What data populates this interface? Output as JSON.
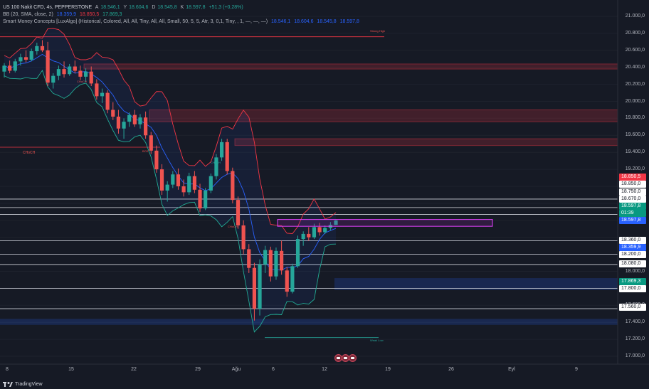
{
  "header": {
    "line1": {
      "symbol": "US 100 Nakit CFD, 4s, PEPPERSTONE",
      "o_label": "A",
      "o_val": "18.546,1",
      "h_label": "Y",
      "h_val": "18.604,6",
      "l_label": "D",
      "l_val": "18.545,8",
      "c_label": "K",
      "c_val": "18.597,8",
      "change": "+51,3 (+0,28%)"
    },
    "line2": {
      "name": "BB (20, SMA, close, 2)",
      "basis": "18.359,9",
      "upper": "18.850,5",
      "lower": "17.869,3"
    },
    "line3": {
      "name": "Smart Money Concepts [LuxAlgo] (Historical, Colored, All, All, Tiny, All, All, Small, 50, 5, 5, Atr, 3, 0,1, Tiny, , 1, —, —, —)",
      "v1": "18.546,1",
      "v2": "18.604,6",
      "v3": "18.545,8",
      "v4": "18.597,8"
    }
  },
  "price_axis": {
    "ticks": [
      "21.000,0",
      "20.800,0",
      "20.600,0",
      "20.400,0",
      "20.200,0",
      "20.000,0",
      "19.800,0",
      "19.600,0",
      "19.400,0",
      "19.200,0",
      "18.000,0",
      "17.600,0",
      "17.400,0",
      "17.200,0",
      "17.000,0"
    ],
    "tags": {
      "bb_upper": "18.850,5",
      "level_18850": "18.850,0",
      "level_18750": "18.750,0",
      "level_18670": "18.670,0",
      "last_price": "18.597,8",
      "countdown": "01:39",
      "last_price_blue": "18.597,8",
      "level_18360": "18.360,0",
      "bb_basis": "18.359,9",
      "level_18200": "18.200,0",
      "level_18080": "18.080,0",
      "bb_lower": "17.869,3",
      "level_17800": "17.800,0",
      "level_17560": "17.560,0"
    }
  },
  "time_axis": [
    "8",
    "15",
    "22",
    "29",
    "Ağu",
    "6",
    "12",
    "19",
    "26",
    "Eyl",
    "9"
  ],
  "smc_labels": {
    "strong_high": "Strong High",
    "weak_low": "Weak Low",
    "choch_big": "CHoCH",
    "choch": "CHoCH",
    "bos": "BOS"
  },
  "branding": "TradingView",
  "colors": {
    "background": "#161a25",
    "up": "#26a69a",
    "down": "#ef5350",
    "bb_upper": "#f23645",
    "bb_basis": "#2962ff",
    "bb_lower": "#22ab94",
    "supply_zone": "#f2364533",
    "demand_zone": "#2962ff33",
    "ob_box": "#9c27b0"
  },
  "chart_data": {
    "type": "candlestick",
    "timeframe": "4h",
    "ylim": [
      17000,
      21100
    ],
    "levels": [
      18850,
      18750,
      18670,
      18360,
      18200,
      18080,
      17800,
      17560
    ],
    "candles": [
      {
        "o": 20350,
        "h": 20450,
        "l": 20280,
        "c": 20420
      },
      {
        "o": 20420,
        "h": 20480,
        "l": 20330,
        "c": 20360
      },
      {
        "o": 20360,
        "h": 20500,
        "l": 20340,
        "c": 20470
      },
      {
        "o": 20470,
        "h": 20560,
        "l": 20420,
        "c": 20520
      },
      {
        "o": 20520,
        "h": 20600,
        "l": 20460,
        "c": 20490
      },
      {
        "o": 20490,
        "h": 20620,
        "l": 20470,
        "c": 20590
      },
      {
        "o": 20590,
        "h": 20690,
        "l": 20550,
        "c": 20650
      },
      {
        "o": 20650,
        "h": 20720,
        "l": 20580,
        "c": 20600
      },
      {
        "o": 20600,
        "h": 20700,
        "l": 20180,
        "c": 20220
      },
      {
        "o": 20220,
        "h": 20330,
        "l": 20150,
        "c": 20300
      },
      {
        "o": 20300,
        "h": 20420,
        "l": 20250,
        "c": 20380
      },
      {
        "o": 20380,
        "h": 20470,
        "l": 20280,
        "c": 20320
      },
      {
        "o": 20320,
        "h": 20440,
        "l": 20300,
        "c": 20410
      },
      {
        "o": 20410,
        "h": 20480,
        "l": 20330,
        "c": 20360
      },
      {
        "o": 20360,
        "h": 20420,
        "l": 20250,
        "c": 20290
      },
      {
        "o": 20290,
        "h": 20390,
        "l": 20230,
        "c": 20350
      },
      {
        "o": 20350,
        "h": 20410,
        "l": 20180,
        "c": 20210
      },
      {
        "o": 20210,
        "h": 20260,
        "l": 20020,
        "c": 20060
      },
      {
        "o": 20060,
        "h": 20150,
        "l": 19980,
        "c": 20100
      },
      {
        "o": 20100,
        "h": 20130,
        "l": 19860,
        "c": 19900
      },
      {
        "o": 19900,
        "h": 19990,
        "l": 19780,
        "c": 19820
      },
      {
        "o": 19820,
        "h": 19900,
        "l": 19620,
        "c": 19680
      },
      {
        "o": 19680,
        "h": 19800,
        "l": 19560,
        "c": 19760
      },
      {
        "o": 19760,
        "h": 19870,
        "l": 19700,
        "c": 19840
      },
      {
        "o": 19840,
        "h": 19900,
        "l": 19700,
        "c": 19730
      },
      {
        "o": 19730,
        "h": 19850,
        "l": 19680,
        "c": 19810
      },
      {
        "o": 19810,
        "h": 19880,
        "l": 19560,
        "c": 19600
      },
      {
        "o": 19600,
        "h": 19640,
        "l": 19380,
        "c": 19420
      },
      {
        "o": 19420,
        "h": 19480,
        "l": 19160,
        "c": 19200
      },
      {
        "o": 19200,
        "h": 19260,
        "l": 18900,
        "c": 18950
      },
      {
        "o": 18950,
        "h": 19060,
        "l": 18820,
        "c": 19020
      },
      {
        "o": 19020,
        "h": 19180,
        "l": 18980,
        "c": 19140
      },
      {
        "o": 19140,
        "h": 19210,
        "l": 18960,
        "c": 19000
      },
      {
        "o": 19000,
        "h": 19080,
        "l": 18880,
        "c": 18930
      },
      {
        "o": 18930,
        "h": 19160,
        "l": 18900,
        "c": 19120
      },
      {
        "o": 19120,
        "h": 19180,
        "l": 18920,
        "c": 18960
      },
      {
        "o": 18960,
        "h": 19030,
        "l": 18700,
        "c": 18740
      },
      {
        "o": 18740,
        "h": 18980,
        "l": 18720,
        "c": 18950
      },
      {
        "o": 18950,
        "h": 19150,
        "l": 18920,
        "c": 19120
      },
      {
        "o": 19120,
        "h": 19380,
        "l": 19080,
        "c": 19340
      },
      {
        "o": 19340,
        "h": 19560,
        "l": 19300,
        "c": 19520
      },
      {
        "o": 19520,
        "h": 19560,
        "l": 19140,
        "c": 19180
      },
      {
        "o": 19180,
        "h": 19220,
        "l": 18800,
        "c": 18840
      },
      {
        "o": 18840,
        "h": 18880,
        "l": 18500,
        "c": 18540
      },
      {
        "o": 18540,
        "h": 18600,
        "l": 18200,
        "c": 18260
      },
      {
        "o": 18260,
        "h": 18320,
        "l": 17980,
        "c": 18040
      },
      {
        "o": 18040,
        "h": 18100,
        "l": 17420,
        "c": 17560
      },
      {
        "o": 17560,
        "h": 18140,
        "l": 17480,
        "c": 18080
      },
      {
        "o": 18080,
        "h": 18300,
        "l": 17980,
        "c": 18250
      },
      {
        "o": 18250,
        "h": 18290,
        "l": 17880,
        "c": 17940
      },
      {
        "o": 17940,
        "h": 18280,
        "l": 17900,
        "c": 18240
      },
      {
        "o": 18240,
        "h": 18360,
        "l": 17960,
        "c": 18010
      },
      {
        "o": 18010,
        "h": 18050,
        "l": 17700,
        "c": 17760
      },
      {
        "o": 17760,
        "h": 18090,
        "l": 17740,
        "c": 18060
      },
      {
        "o": 18060,
        "h": 18420,
        "l": 18040,
        "c": 18380
      },
      {
        "o": 18380,
        "h": 18470,
        "l": 18300,
        "c": 18440
      },
      {
        "o": 18440,
        "h": 18520,
        "l": 18360,
        "c": 18400
      },
      {
        "o": 18400,
        "h": 18560,
        "l": 18380,
        "c": 18520
      },
      {
        "o": 18520,
        "h": 18570,
        "l": 18420,
        "c": 18460
      },
      {
        "o": 18460,
        "h": 18540,
        "l": 18440,
        "c": 18510
      },
      {
        "o": 18510,
        "h": 18580,
        "l": 18480,
        "c": 18546
      },
      {
        "o": 18546,
        "h": 18605,
        "l": 18546,
        "c": 18598
      }
    ]
  }
}
